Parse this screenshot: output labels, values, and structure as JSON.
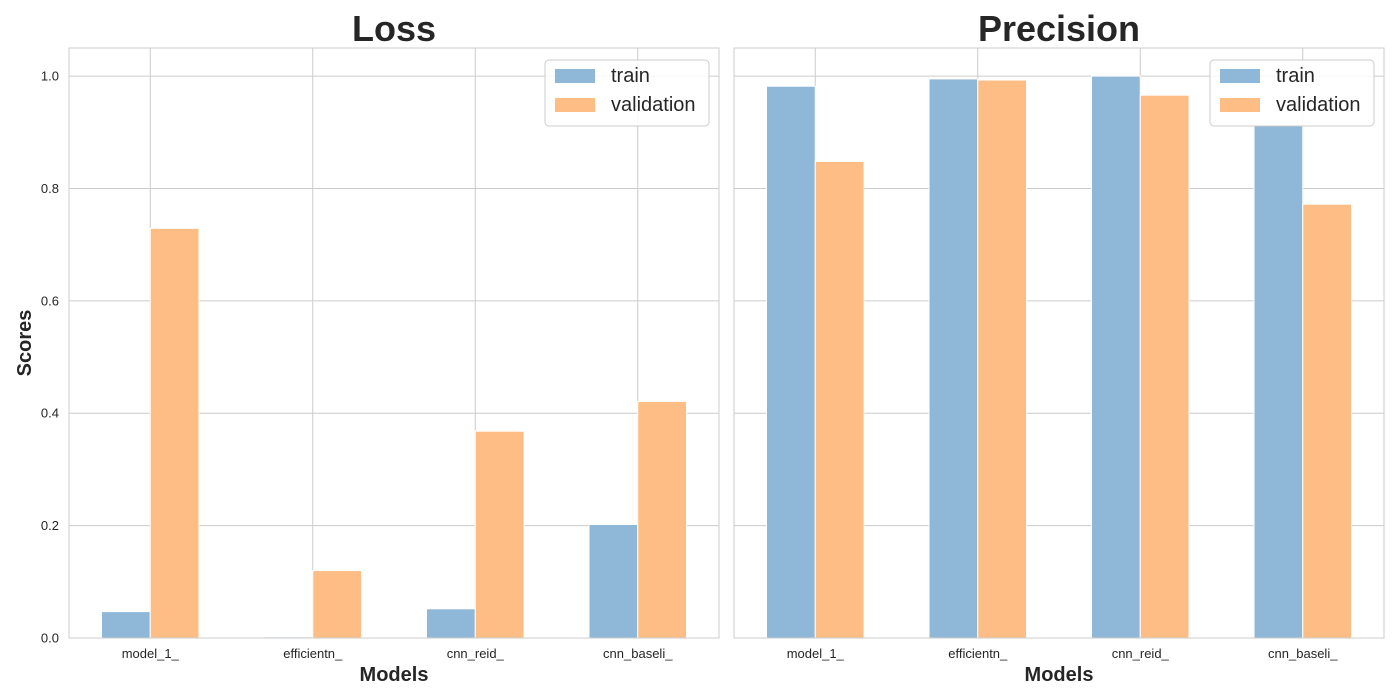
{
  "chart_data": [
    {
      "type": "bar",
      "title": "Loss",
      "xlabel": "Models",
      "ylabel": "Scores",
      "categories": [
        "model_1_",
        "efficientn_",
        "cnn_reid_",
        "cnn_baseli_"
      ],
      "series": [
        {
          "name": "train",
          "values": [
            0.047,
            0.002,
            0.052,
            0.202
          ]
        },
        {
          "name": "validation",
          "values": [
            0.729,
            0.12,
            0.368,
            0.421
          ]
        }
      ],
      "ylim": [
        0,
        1.05
      ],
      "yticks": [
        "0.0",
        "0.2",
        "0.4",
        "0.6",
        "0.8",
        "1.0"
      ],
      "grid": true,
      "legend_position": "top-right"
    },
    {
      "type": "bar",
      "title": "Precision",
      "xlabel": "Models",
      "ylabel": "",
      "categories": [
        "model_1_",
        "efficientn_",
        "cnn_reid_",
        "cnn_baseli_"
      ],
      "series": [
        {
          "name": "train",
          "values": [
            0.982,
            0.995,
            1.0,
            0.912
          ]
        },
        {
          "name": "validation",
          "values": [
            0.848,
            0.993,
            0.966,
            0.772
          ]
        }
      ],
      "ylim": [
        0,
        1.05
      ],
      "yticks": [],
      "grid": true,
      "legend_position": "top-right"
    }
  ],
  "colors": {
    "train": "#8fb8d8",
    "validation": "#fdbd85",
    "grid": "#cccccc",
    "text": "#262626"
  }
}
